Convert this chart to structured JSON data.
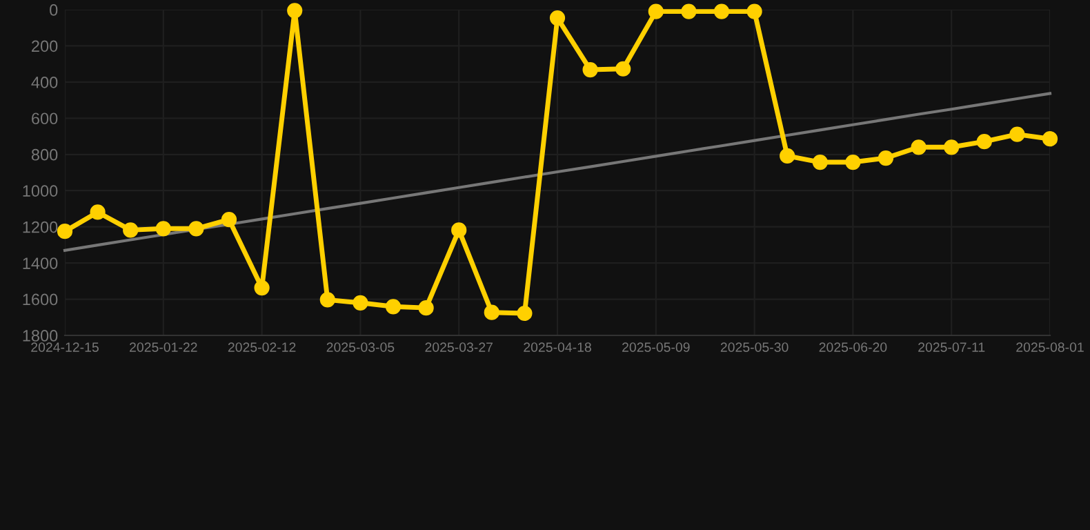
{
  "chart_data": {
    "type": "line",
    "categories": [
      "2024-12-15",
      null,
      null,
      "2025-01-22",
      null,
      null,
      "2025-02-12",
      null,
      null,
      "2025-03-05",
      null,
      null,
      "2025-03-27",
      null,
      null,
      "2025-04-18",
      null,
      null,
      "2025-05-09",
      null,
      null,
      "2025-05-30",
      null,
      null,
      "2025-06-20",
      null,
      null,
      "2025-07-11",
      null,
      null,
      "2025-08-01"
    ],
    "series": [
      {
        "color": "#ffd000",
        "marker": "circle",
        "values": [
          1225,
          1119,
          1218,
          1210,
          1210,
          1160,
          1537,
          5,
          1603,
          1620,
          1641,
          1648,
          1218,
          1673,
          1678,
          46,
          332,
          327,
          10,
          10,
          10,
          10,
          808,
          843,
          843,
          820,
          760,
          760,
          729,
          689,
          714
        ]
      },
      {
        "color": "#777777",
        "marker": "none",
        "values": [
          1330,
          1301,
          1272,
          1243,
          1214,
          1186,
          1157,
          1128,
          1099,
          1070,
          1041,
          1012,
          983,
          954,
          925,
          896,
          868,
          839,
          810,
          781,
          752,
          723,
          694,
          665,
          636,
          607,
          578,
          550,
          521,
          492,
          463
        ]
      }
    ],
    "ylim": [
      1800,
      0
    ],
    "yticks": [
      0,
      200,
      400,
      600,
      800,
      1000,
      1200,
      1400,
      1600,
      1800
    ],
    "grid": true
  }
}
